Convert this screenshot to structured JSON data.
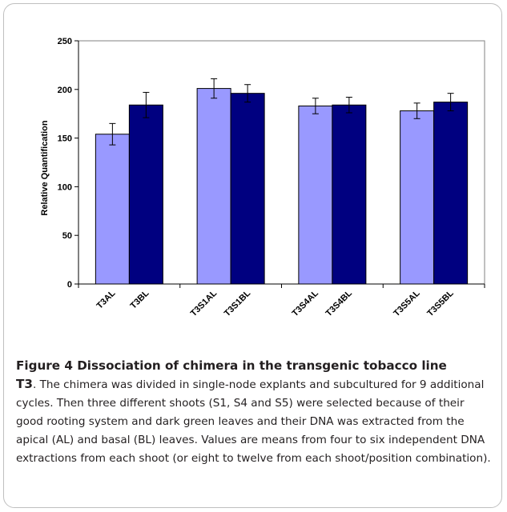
{
  "chart_data": {
    "type": "bar",
    "ylabel": "Relative Quantification",
    "ylim": [
      0,
      250
    ],
    "yticks": [
      0,
      50,
      100,
      150,
      200,
      250
    ],
    "grid": false,
    "legend": "none",
    "groups": [
      {
        "bars": [
          {
            "label": "T3AL",
            "value": 154,
            "error": 11,
            "color": "#9999ff"
          },
          {
            "label": "T3BL",
            "value": 184,
            "error": 13,
            "color": "#000080"
          }
        ]
      },
      {
        "bars": [
          {
            "label": "T3S1AL",
            "value": 201,
            "error": 10,
            "color": "#9999ff"
          },
          {
            "label": "T3S1BL",
            "value": 196,
            "error": 9,
            "color": "#000080"
          }
        ]
      },
      {
        "bars": [
          {
            "label": "T3S4AL",
            "value": 183,
            "error": 8,
            "color": "#9999ff"
          },
          {
            "label": "T3S4BL",
            "value": 184,
            "error": 8,
            "color": "#000080"
          }
        ]
      },
      {
        "bars": [
          {
            "label": "T3S5AL",
            "value": 178,
            "error": 8,
            "color": "#9999ff"
          },
          {
            "label": "T3S5BL",
            "value": 187,
            "error": 9,
            "color": "#000080"
          }
        ]
      }
    ]
  },
  "caption": {
    "title": "Figure 4 Dissociation of chimera in the transgenic tobacco line",
    "lead": "T3",
    "body": ". The chimera was divided in single-node explants and subcultured for 9 additional cycles. Then three different shoots (S1, S4 and S5) were selected because of their good rooting system and dark green leaves and their DNA was extracted from the apical (AL) and basal (BL) leaves. Values are means from four to six independent DNA extractions from each shoot (or eight to twelve from each shoot/position combination)."
  }
}
